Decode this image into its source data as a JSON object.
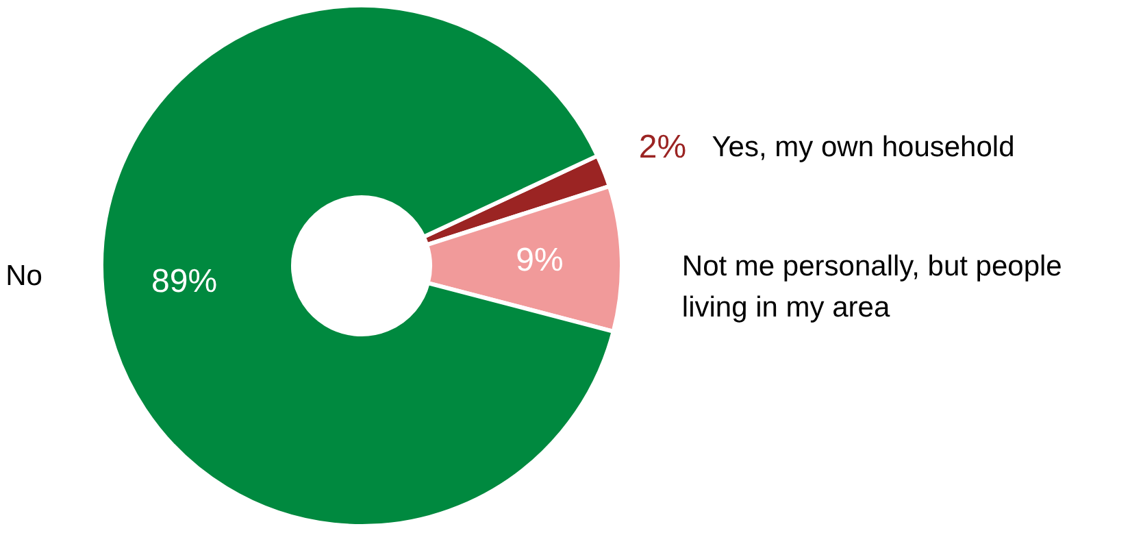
{
  "chart_data": {
    "type": "donut",
    "categories": [
      "Yes, my own household",
      "Not me personally, but people living in my area",
      "No"
    ],
    "values": [
      2,
      9,
      89
    ],
    "colors": [
      "#9b2423",
      "#f19a9a",
      "#00893f"
    ],
    "value_labels": [
      "2%",
      "9%",
      "89%"
    ]
  }
}
